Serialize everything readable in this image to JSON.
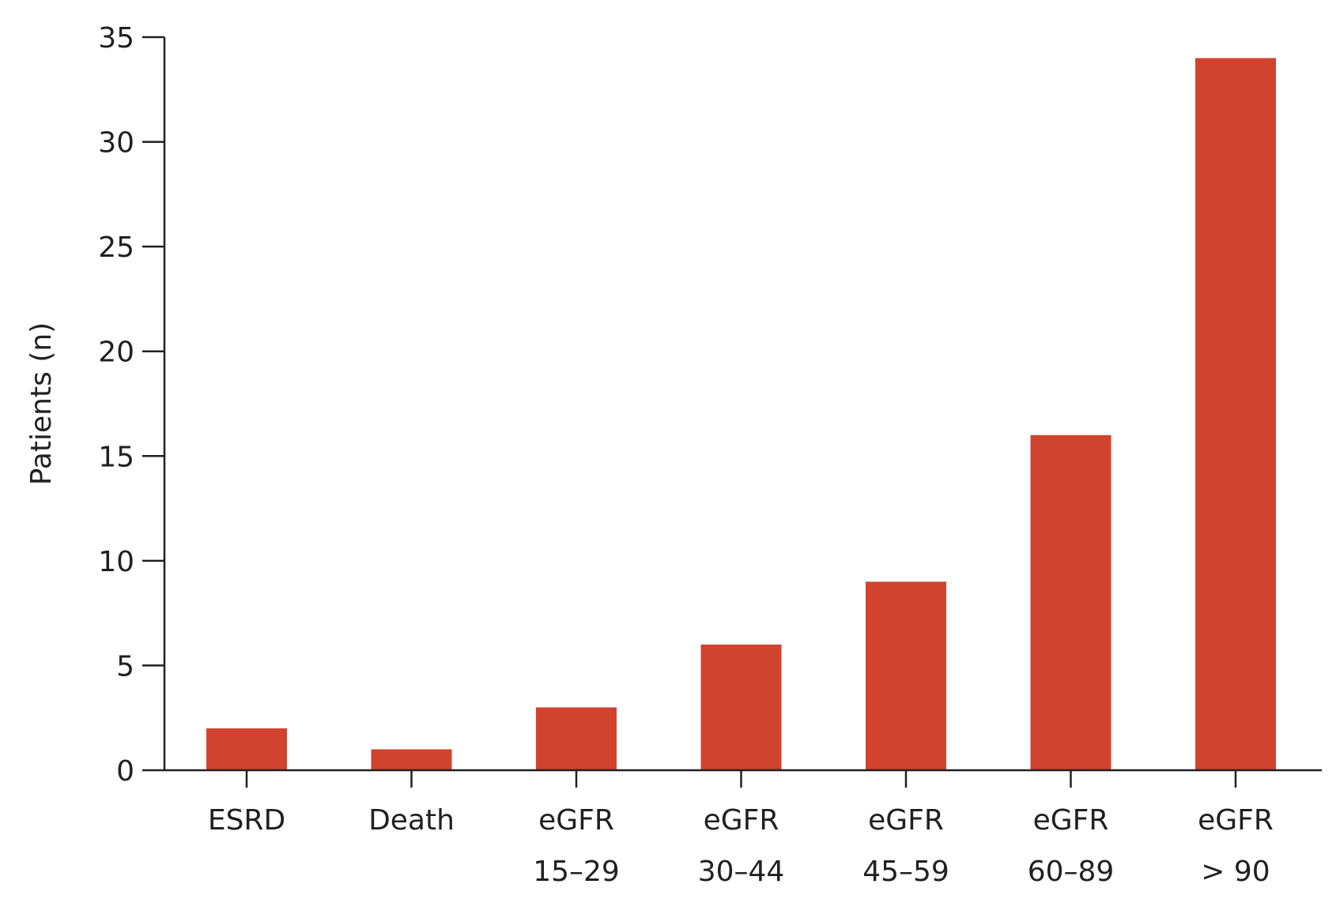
{
  "chart_data": {
    "type": "bar",
    "title": "",
    "xlabel": "",
    "ylabel": "Patients (n)",
    "ylim": [
      0,
      35
    ],
    "yticks": [
      0,
      5,
      10,
      15,
      20,
      25,
      30,
      35
    ],
    "grid": false,
    "legend": "none",
    "bar_color": "#d0432f",
    "categories": [
      [
        "ESRD"
      ],
      [
        "Death"
      ],
      [
        "eGFR",
        "15–29"
      ],
      [
        "eGFR",
        "30–44"
      ],
      [
        "eGFR",
        "45–59"
      ],
      [
        "eGFR",
        "60–89"
      ],
      [
        "eGFR",
        "> 90"
      ]
    ],
    "values": [
      2,
      1,
      3,
      6,
      9,
      16,
      34
    ]
  }
}
